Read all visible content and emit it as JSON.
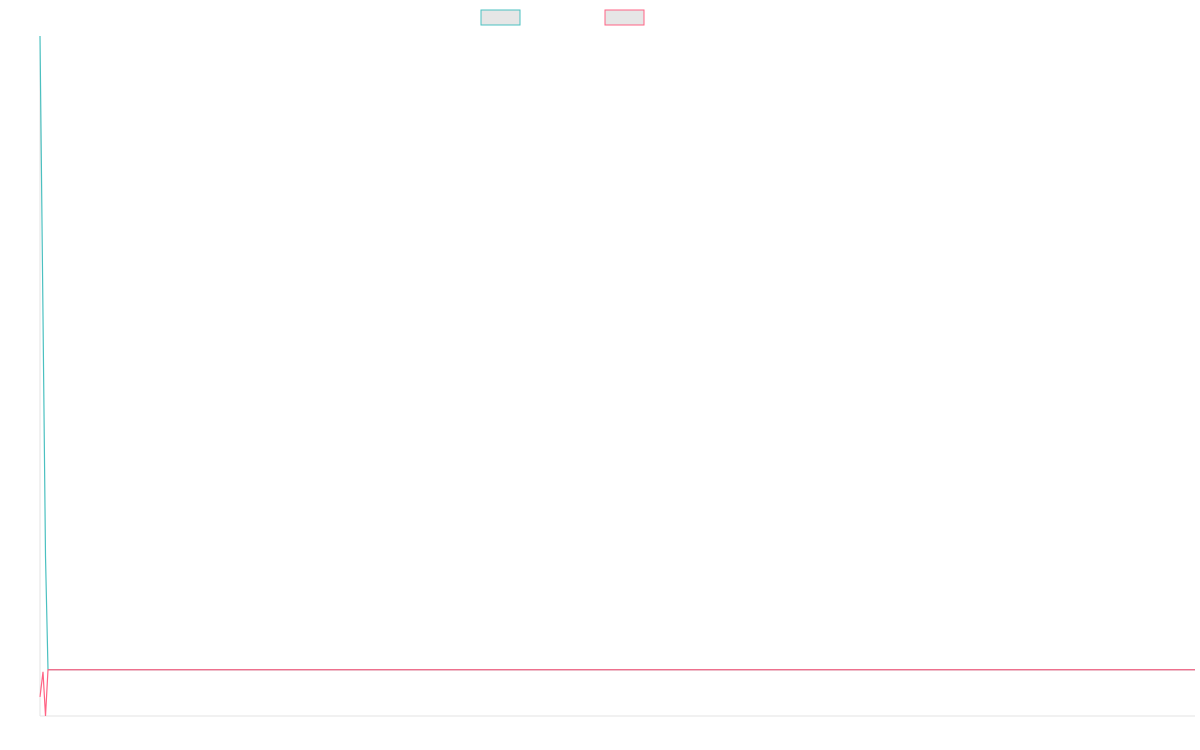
{
  "chart_data": {
    "type": "line",
    "x": [
      0,
      3,
      5.5,
      8,
      1155
    ],
    "xlim": [
      0,
      1155
    ],
    "ylim": [
      0,
      100
    ],
    "series": [
      {
        "color": "#4bc0c0",
        "values": [
          100,
          58.8,
          23.5,
          6.8,
          6.8
        ]
      },
      {
        "color": "#ff6384",
        "values": [
          2.8,
          6.5,
          0,
          6.8,
          6.8
        ]
      }
    ]
  }
}
